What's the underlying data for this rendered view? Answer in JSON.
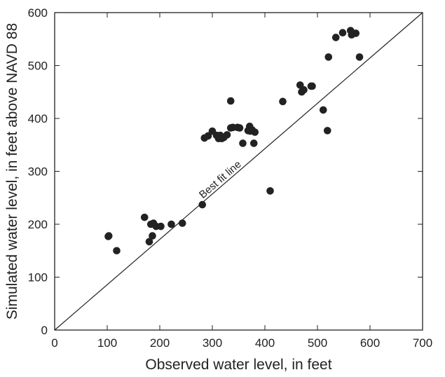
{
  "chart_data": {
    "type": "scatter",
    "xlabel": "Observed water level, in feet",
    "ylabel": "Simulated water level, in feet above NAVD 88",
    "xlim": [
      0,
      700
    ],
    "ylim": [
      0,
      600
    ],
    "x_ticks": [
      "0",
      "100",
      "200",
      "300",
      "400",
      "500",
      "600",
      "700"
    ],
    "y_ticks": [
      "0",
      "100",
      "200",
      "300",
      "400",
      "500",
      "600"
    ],
    "grid": false,
    "reference_line": {
      "label": "Best fit line",
      "from": [
        0,
        0
      ],
      "to": [
        700,
        600
      ]
    },
    "point_color": "#222222",
    "points": [
      [
        102,
        177
      ],
      [
        103,
        178
      ],
      [
        118,
        150
      ],
      [
        171,
        213
      ],
      [
        180,
        167
      ],
      [
        183,
        200
      ],
      [
        186,
        178
      ],
      [
        188,
        202
      ],
      [
        193,
        196
      ],
      [
        202,
        196
      ],
      [
        222,
        200
      ],
      [
        243,
        202
      ],
      [
        281,
        237
      ],
      [
        285,
        363
      ],
      [
        292,
        367
      ],
      [
        300,
        376
      ],
      [
        308,
        368
      ],
      [
        312,
        362
      ],
      [
        315,
        368
      ],
      [
        318,
        362
      ],
      [
        322,
        364
      ],
      [
        328,
        369
      ],
      [
        335,
        433
      ],
      [
        335,
        382
      ],
      [
        339,
        383
      ],
      [
        348,
        383
      ],
      [
        352,
        382
      ],
      [
        358,
        353
      ],
      [
        368,
        377
      ],
      [
        371,
        385
      ],
      [
        372,
        376
      ],
      [
        376,
        378
      ],
      [
        379,
        353
      ],
      [
        381,
        374
      ],
      [
        410,
        263
      ],
      [
        434,
        432
      ],
      [
        467,
        463
      ],
      [
        470,
        450
      ],
      [
        474,
        454
      ],
      [
        488,
        461
      ],
      [
        490,
        461
      ],
      [
        511,
        416
      ],
      [
        519,
        377
      ],
      [
        521,
        516
      ],
      [
        535,
        553
      ],
      [
        548,
        562
      ],
      [
        563,
        566
      ],
      [
        565,
        558
      ],
      [
        573,
        561
      ],
      [
        580,
        516
      ]
    ]
  }
}
